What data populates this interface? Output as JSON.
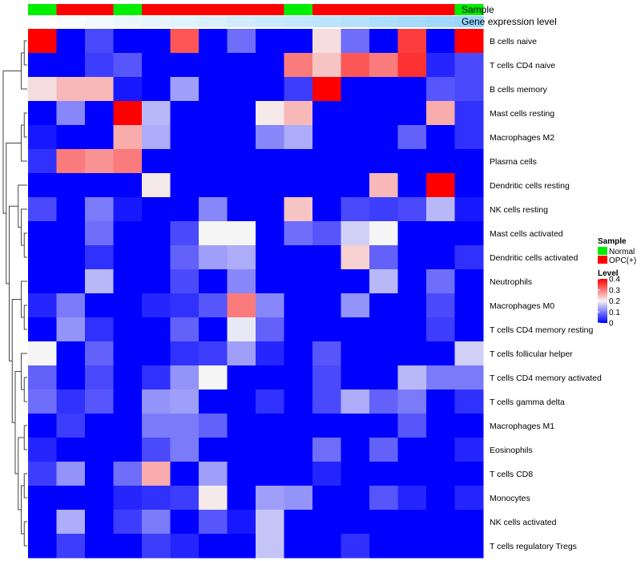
{
  "chart_data": {
    "type": "heatmap",
    "title": "",
    "columns": 16,
    "rows": [
      "B cells naive",
      "T cells CD4 naive",
      "B cells memory",
      "Mast cells resting",
      "Macrophages M2",
      "Plasma cells",
      "Dendritic cells resting",
      "NK cells resting",
      "Mast cells activated",
      "Dendritic cells activated",
      "Neutrophils",
      "Macrophages M0",
      "T cells CD4 memory resting",
      "T cells follicular helper",
      "T cells CD4 memory activated",
      "T cells gamma delta",
      "Macrophages M1",
      "Eosinophils",
      "T cells CD8",
      "Monocytes",
      "NK cells activated",
      "T cells regulatory  Tregs"
    ],
    "values": [
      [
        0.4,
        0.0,
        0.06,
        0.0,
        0.0,
        0.33,
        0.0,
        0.09,
        0.0,
        0.0,
        0.22,
        0.09,
        0.0,
        0.35,
        0.0,
        0.4
      ],
      [
        0.0,
        0.0,
        0.05,
        0.07,
        0.0,
        0.0,
        0.0,
        0.0,
        0.0,
        0.3,
        0.24,
        0.33,
        0.3,
        0.36,
        0.03,
        0.06
      ],
      [
        0.22,
        0.25,
        0.25,
        0.02,
        0.0,
        0.13,
        0.0,
        0.0,
        0.0,
        0.05,
        0.4,
        0.0,
        0.0,
        0.0,
        0.07,
        0.06
      ],
      [
        0.0,
        0.11,
        0.0,
        0.4,
        0.15,
        0.0,
        0.0,
        0.0,
        0.21,
        0.25,
        0.0,
        0.0,
        0.0,
        0.0,
        0.26,
        0.04
      ],
      [
        0.02,
        0.0,
        0.0,
        0.26,
        0.14,
        0.0,
        0.0,
        0.0,
        0.11,
        0.14,
        0.0,
        0.0,
        0.0,
        0.08,
        0.0,
        0.04
      ],
      [
        0.04,
        0.3,
        0.28,
        0.3,
        0.0,
        0.0,
        0.0,
        0.0,
        0.0,
        0.0,
        0.0,
        0.0,
        0.0,
        0.0,
        0.0,
        0.0
      ],
      [
        0.0,
        0.0,
        0.0,
        0.0,
        0.21,
        0.0,
        0.0,
        0.0,
        0.0,
        0.0,
        0.0,
        0.0,
        0.25,
        0.0,
        0.4,
        0.0
      ],
      [
        0.06,
        0.0,
        0.1,
        0.02,
        0.0,
        0.0,
        0.11,
        0.0,
        0.0,
        0.24,
        0.0,
        0.06,
        0.05,
        0.06,
        0.15,
        0.02
      ],
      [
        0.0,
        0.0,
        0.09,
        0.0,
        0.0,
        0.06,
        0.2,
        0.2,
        0.0,
        0.09,
        0.07,
        0.17,
        0.2,
        0.0,
        0.0,
        0.0
      ],
      [
        0.0,
        0.0,
        0.04,
        0.0,
        0.0,
        0.08,
        0.13,
        0.14,
        0.0,
        0.0,
        0.0,
        0.23,
        0.08,
        0.0,
        0.0,
        0.04
      ],
      [
        0.0,
        0.0,
        0.15,
        0.0,
        0.0,
        0.06,
        0.0,
        0.11,
        0.0,
        0.0,
        0.0,
        0.0,
        0.15,
        0.0,
        0.09,
        0.0
      ],
      [
        0.03,
        0.1,
        0.0,
        0.0,
        0.03,
        0.04,
        0.07,
        0.3,
        0.11,
        0.0,
        0.0,
        0.12,
        0.0,
        0.0,
        0.06,
        0.0
      ],
      [
        0.0,
        0.12,
        0.04,
        0.0,
        0.0,
        0.08,
        0.0,
        0.19,
        0.08,
        0.0,
        0.0,
        0.0,
        0.0,
        0.0,
        0.05,
        0.0
      ],
      [
        0.2,
        0.0,
        0.08,
        0.0,
        0.0,
        0.04,
        0.05,
        0.13,
        0.03,
        0.0,
        0.07,
        0.0,
        0.0,
        0.0,
        0.0,
        0.17
      ],
      [
        0.08,
        0.0,
        0.06,
        0.0,
        0.04,
        0.12,
        0.2,
        0.0,
        0.0,
        0.0,
        0.06,
        0.0,
        0.0,
        0.15,
        0.1,
        0.1
      ],
      [
        0.09,
        0.04,
        0.07,
        0.0,
        0.12,
        0.13,
        0.0,
        0.0,
        0.04,
        0.0,
        0.06,
        0.14,
        0.08,
        0.1,
        0.0,
        0.04
      ],
      [
        0.0,
        0.05,
        0.0,
        0.0,
        0.1,
        0.1,
        0.08,
        0.0,
        0.0,
        0.0,
        0.0,
        0.0,
        0.0,
        0.07,
        0.0,
        0.0
      ],
      [
        0.03,
        0.0,
        0.0,
        0.0,
        0.06,
        0.1,
        0.0,
        0.0,
        0.0,
        0.0,
        0.09,
        0.0,
        0.08,
        0.0,
        0.0,
        0.03
      ],
      [
        0.05,
        0.12,
        0.0,
        0.09,
        0.26,
        0.0,
        0.13,
        0.0,
        0.0,
        0.0,
        0.03,
        0.0,
        0.0,
        0.0,
        0.0,
        0.0
      ],
      [
        0.0,
        0.0,
        0.0,
        0.03,
        0.04,
        0.05,
        0.21,
        0.0,
        0.13,
        0.12,
        0.0,
        0.0,
        0.07,
        0.03,
        0.0,
        0.03
      ],
      [
        0.0,
        0.14,
        0.0,
        0.05,
        0.1,
        0.0,
        0.07,
        0.02,
        0.16,
        0.0,
        0.0,
        0.0,
        0.0,
        0.0,
        0.0,
        0.0
      ],
      [
        0.0,
        0.05,
        0.0,
        0.0,
        0.05,
        0.03,
        0.0,
        0.0,
        0.16,
        0.0,
        0.0,
        0.04,
        0.0,
        0.0,
        0.0,
        0.0
      ]
    ],
    "column_annotations": {
      "sample_label": "Sample",
      "sample": [
        "Normal",
        "OPC(+)",
        "OPC(+)",
        "Normal",
        "OPC(+)",
        "OPC(+)",
        "OPC(+)",
        "OPC(+)",
        "OPC(+)",
        "Normal",
        "OPC(+)",
        "OPC(+)",
        "OPC(+)",
        "OPC(+)",
        "OPC(+)",
        "Normal"
      ],
      "expression_label": "Gene expression level",
      "expression": [
        0.0,
        0.05,
        0.1,
        0.15,
        0.2,
        0.25,
        0.32,
        0.38,
        0.44,
        0.5,
        0.56,
        0.62,
        0.68,
        0.74,
        0.8,
        0.86
      ]
    },
    "legend": {
      "sample_title": "Sample",
      "sample_entries": [
        {
          "label": "Normal",
          "color": "#00ee00"
        },
        {
          "label": "OPC(+)",
          "color": "#ff0000"
        }
      ],
      "level_title": "Level",
      "level_range": [
        0,
        0.4
      ],
      "level_ticks": [
        "0",
        "0.1",
        "0.2",
        "0.3",
        "0.4"
      ]
    },
    "colors": {
      "low": "#0000ff",
      "mid": "#f5f5f5",
      "high": "#ff0000",
      "expr_low": "#ffffff",
      "expr_high": "#87cefa"
    },
    "dendrogram": "hierarchical clustering of rows (left side)"
  }
}
